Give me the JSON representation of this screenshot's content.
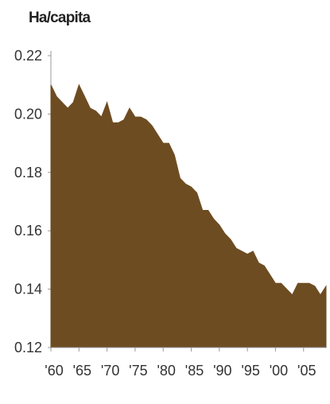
{
  "chart_data": {
    "type": "area",
    "title": "",
    "unit_label": "Ha/capita",
    "xlabel": "",
    "ylabel": "",
    "x": [
      1960,
      1961,
      1962,
      1963,
      1964,
      1965,
      1966,
      1967,
      1968,
      1969,
      1970,
      1971,
      1972,
      1973,
      1974,
      1975,
      1976,
      1977,
      1978,
      1979,
      1980,
      1981,
      1982,
      1983,
      1984,
      1985,
      1986,
      1987,
      1988,
      1989,
      1990,
      1991,
      1992,
      1993,
      1994,
      1995,
      1996,
      1997,
      1998,
      1999,
      2000,
      2001,
      2002,
      2003,
      2004,
      2005,
      2006,
      2007,
      2008,
      2009
    ],
    "values": [
      0.21,
      0.206,
      0.204,
      0.202,
      0.204,
      0.21,
      0.206,
      0.202,
      0.201,
      0.199,
      0.204,
      0.197,
      0.197,
      0.198,
      0.202,
      0.199,
      0.199,
      0.198,
      0.196,
      0.193,
      0.19,
      0.19,
      0.186,
      0.178,
      0.176,
      0.175,
      0.173,
      0.167,
      0.167,
      0.164,
      0.162,
      0.159,
      0.157,
      0.154,
      0.153,
      0.152,
      0.153,
      0.149,
      0.148,
      0.145,
      0.142,
      0.142,
      0.14,
      0.138,
      0.142,
      0.142,
      0.142,
      0.141,
      0.138,
      0.141
    ],
    "ylim": [
      0.12,
      0.22
    ],
    "xlim": [
      1960,
      2009
    ],
    "yticks": [
      "0.22",
      "0.20",
      "0.18",
      "0.16",
      "0.14",
      "0.12"
    ],
    "xticks": [
      {
        "year": 1960,
        "label": "'60"
      },
      {
        "year": 1965,
        "label": "'65"
      },
      {
        "year": 1970,
        "label": "'70"
      },
      {
        "year": 1975,
        "label": "'75"
      },
      {
        "year": 1980,
        "label": "'80"
      },
      {
        "year": 1985,
        "label": "'85"
      },
      {
        "year": 1990,
        "label": "'90"
      },
      {
        "year": 1995,
        "label": "'95"
      },
      {
        "year": 2000,
        "label": "'00"
      },
      {
        "year": 2005,
        "label": "'05"
      }
    ],
    "grid": false,
    "legend": "none",
    "colors": {
      "area": "#6e4c22",
      "axis": "#999999",
      "text": "#333333"
    }
  }
}
